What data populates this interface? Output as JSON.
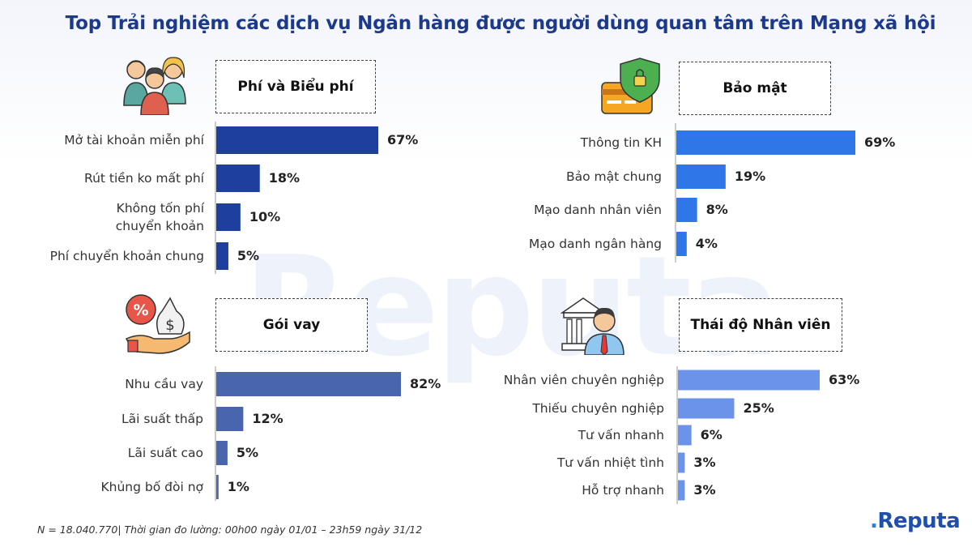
{
  "title": "Top Trải nghiệm các dịch vụ Ngân hàng được người dùng quan tâm trên Mạng xã hội",
  "watermark": "Reputa",
  "footnote": "N = 18.040.770| Thời gian đo lường: 00h00 ngày 01/01 – 23h59 ngày 31/12",
  "brand": {
    "dot": ".",
    "name": "Reputa"
  },
  "chart_data": [
    {
      "type": "bar",
      "title": "Phí và Biểu phí",
      "icon": "people-group-icon",
      "color": "#1f3f9e",
      "categories": [
        "Mở tài khoản miễn phí",
        "Rút tiền ko mất phí",
        "Không tốn phí chuyển khoản",
        "Phí chuyển khoản chung"
      ],
      "values": [
        67,
        18,
        10,
        5
      ],
      "labels": [
        "67%",
        "18%",
        "10%",
        "5%"
      ]
    },
    {
      "type": "bar",
      "title": "Bảo mật",
      "icon": "card-security-shield-icon",
      "color": "#2f76e8",
      "categories": [
        "Thông tin KH",
        "Bảo mật chung",
        "Mạo danh nhân viên",
        "Mạo danh ngân hàng"
      ],
      "values": [
        69,
        19,
        8,
        4
      ],
      "labels": [
        "69%",
        "19%",
        "8%",
        "4%"
      ]
    },
    {
      "type": "bar",
      "title": "Gói vay",
      "icon": "loan-money-hand-icon",
      "color": "#4865ad",
      "categories": [
        "Nhu cầu vay",
        "Lãi suất thấp",
        "Lãi suất cao",
        "Khủng bố đòi nợ"
      ],
      "values": [
        82,
        12,
        5,
        1
      ],
      "labels": [
        "82%",
        "12%",
        "5%",
        "1%"
      ]
    },
    {
      "type": "bar",
      "title": "Thái độ Nhân viên",
      "icon": "bank-employee-icon",
      "color": "#6b93ea",
      "categories": [
        "Nhân viên chuyên nghiệp",
        "Thiếu chuyên nghiệp",
        "Tư vấn nhanh",
        "Tư vấn nhiệt tình",
        "Hỗ trợ nhanh"
      ],
      "values": [
        63,
        25,
        6,
        3,
        3
      ],
      "labels": [
        "63%",
        "25%",
        "6%",
        "3%",
        "3%"
      ]
    }
  ]
}
